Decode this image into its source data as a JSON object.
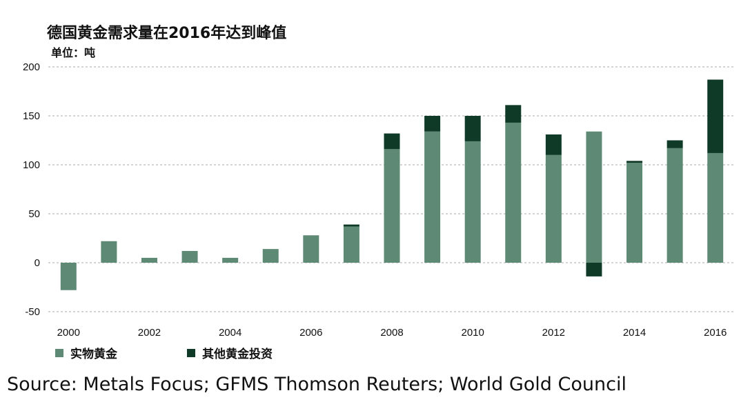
{
  "title": "德国黄金需求量在2016年达到峰值",
  "unit_label": "单位：吨",
  "source": "Source: Metals Focus; GFMS Thomson Reuters; World Gold Council",
  "colors": {
    "physical": "#5e8a75",
    "other": "#0f3a28",
    "grid": "#a8a8a8"
  },
  "chart_data": {
    "type": "bar",
    "stacked": true,
    "title": "德国黄金需求量在2016年达到峰值",
    "ylabel": "单位：吨",
    "xlabel": "",
    "ylim": [
      -50,
      200
    ],
    "yticks": [
      -50,
      0,
      50,
      100,
      150,
      200
    ],
    "grid": true,
    "legend_position": "bottom-left",
    "categories": [
      "2000",
      "2001",
      "2002",
      "2003",
      "2004",
      "2005",
      "2006",
      "2007",
      "2008",
      "2009",
      "2010",
      "2011",
      "2012",
      "2013",
      "2014",
      "2015",
      "2016"
    ],
    "xtick_labels": [
      "2000",
      "",
      "2002",
      "",
      "2004",
      "",
      "2006",
      "",
      "2008",
      "",
      "2010",
      "",
      "2012",
      "",
      "2014",
      "",
      "2016"
    ],
    "series": [
      {
        "name": "实物黄金",
        "values": [
          -28,
          22,
          5,
          12,
          5,
          14,
          28,
          37,
          116,
          134,
          124,
          143,
          110,
          134,
          102,
          117,
          112
        ]
      },
      {
        "name": "其他黄金投资",
        "values": [
          0,
          0,
          0,
          0,
          0,
          0,
          0,
          2,
          16,
          16,
          26,
          18,
          21,
          -14,
          2,
          8,
          75
        ]
      }
    ]
  }
}
